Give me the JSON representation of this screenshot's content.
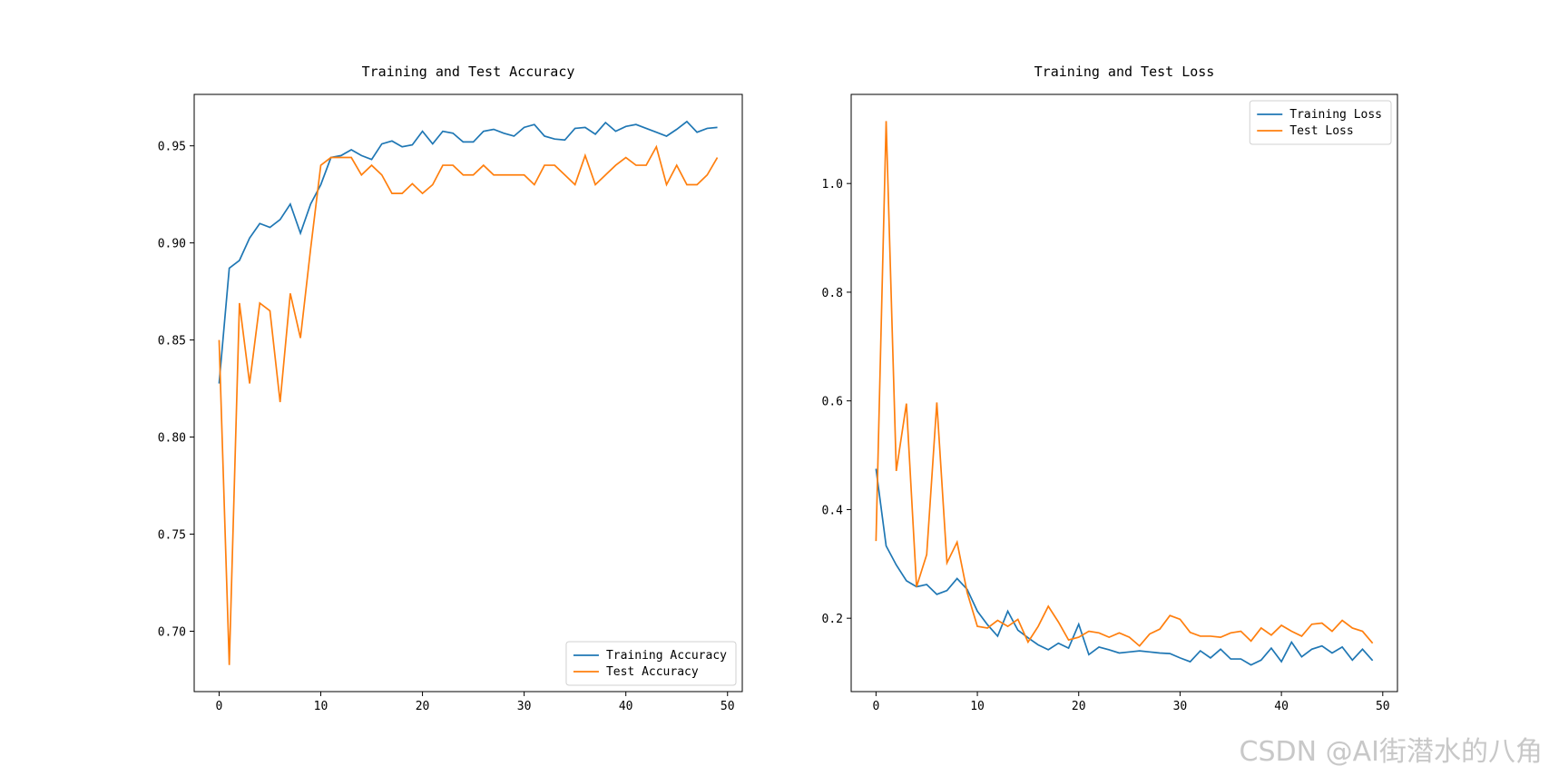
{
  "chart_data": [
    {
      "type": "line",
      "title": "Training and Test Accuracy",
      "x": [
        0,
        1,
        2,
        3,
        4,
        5,
        6,
        7,
        8,
        9,
        10,
        11,
        12,
        13,
        14,
        15,
        16,
        17,
        18,
        19,
        20,
        21,
        22,
        23,
        24,
        25,
        26,
        27,
        28,
        29,
        30,
        31,
        32,
        33,
        34,
        35,
        36,
        37,
        38,
        39,
        40,
        41,
        42,
        43,
        44,
        45,
        46,
        47,
        48,
        49
      ],
      "series": [
        {
          "name": "Training Accuracy",
          "color": "#1f77b4",
          "values": [
            0.8276,
            0.887,
            0.891,
            0.9025,
            0.91,
            0.908,
            0.912,
            0.92,
            0.905,
            0.92,
            0.93,
            0.944,
            0.945,
            0.948,
            0.945,
            0.943,
            0.951,
            0.9525,
            0.9495,
            0.9505,
            0.9575,
            0.951,
            0.9575,
            0.9565,
            0.952,
            0.952,
            0.9575,
            0.9585,
            0.9565,
            0.955,
            0.9595,
            0.961,
            0.955,
            0.9535,
            0.953,
            0.959,
            0.9595,
            0.956,
            0.962,
            0.9575,
            0.96,
            0.961,
            0.959,
            0.957,
            0.955,
            0.9585,
            0.9625,
            0.957,
            0.959,
            0.9595
          ]
        },
        {
          "name": "Test Accuracy",
          "color": "#ff7f0e",
          "values": [
            0.85,
            0.6826,
            0.869,
            0.8276,
            0.869,
            0.865,
            0.818,
            0.874,
            0.851,
            0.897,
            0.94,
            0.944,
            0.944,
            0.944,
            0.935,
            0.94,
            0.935,
            0.9255,
            0.9255,
            0.9305,
            0.9255,
            0.93,
            0.94,
            0.94,
            0.935,
            0.935,
            0.94,
            0.935,
            0.935,
            0.935,
            0.935,
            0.93,
            0.94,
            0.94,
            0.935,
            0.93,
            0.945,
            0.93,
            0.935,
            0.94,
            0.944,
            0.94,
            0.94,
            0.9495,
            0.93,
            0.94,
            0.93,
            0.93,
            0.935,
            0.944
          ]
        }
      ],
      "xlim": [
        -2.45,
        51.45
      ],
      "xticks": [
        0,
        10,
        20,
        30,
        40,
        50
      ],
      "ylim": [
        0.6689,
        0.9765
      ],
      "yticks": [
        {
          "value": 0.7,
          "label": "0.70"
        },
        0.75,
        {
          "value": 0.8,
          "label": "0.80"
        },
        0.85,
        {
          "value": 0.9,
          "label": "0.90"
        },
        0.95
      ],
      "legend": "lower right"
    },
    {
      "type": "line",
      "title": "Training and Test Loss",
      "x": [
        0,
        1,
        2,
        3,
        4,
        5,
        6,
        7,
        8,
        9,
        10,
        11,
        12,
        13,
        14,
        15,
        16,
        17,
        18,
        19,
        20,
        21,
        22,
        23,
        24,
        25,
        26,
        27,
        28,
        29,
        30,
        31,
        32,
        33,
        34,
        35,
        36,
        37,
        38,
        39,
        40,
        41,
        42,
        43,
        44,
        45,
        46,
        47,
        48,
        49
      ],
      "series": [
        {
          "name": "Training Loss",
          "color": "#1f77b4",
          "values": [
            0.475,
            0.333,
            0.298,
            0.269,
            0.258,
            0.262,
            0.244,
            0.251,
            0.273,
            0.253,
            0.213,
            0.188,
            0.167,
            0.213,
            0.178,
            0.164,
            0.151,
            0.142,
            0.154,
            0.145,
            0.189,
            0.133,
            0.147,
            0.142,
            0.136,
            0.138,
            0.14,
            0.138,
            0.136,
            0.135,
            0.127,
            0.12,
            0.14,
            0.127,
            0.143,
            0.125,
            0.125,
            0.114,
            0.123,
            0.145,
            0.12,
            0.156,
            0.129,
            0.143,
            0.149,
            0.136,
            0.147,
            0.123,
            0.143,
            0.122
          ]
        },
        {
          "name": "Test Loss",
          "color": "#ff7f0e",
          "values": [
            0.342,
            1.115,
            0.471,
            0.595,
            0.258,
            0.317,
            0.597,
            0.302,
            0.34,
            0.247,
            0.185,
            0.182,
            0.196,
            0.185,
            0.198,
            0.156,
            0.185,
            0.222,
            0.193,
            0.16,
            0.165,
            0.176,
            0.173,
            0.165,
            0.173,
            0.165,
            0.149,
            0.171,
            0.18,
            0.205,
            0.198,
            0.174,
            0.167,
            0.167,
            0.165,
            0.173,
            0.176,
            0.158,
            0.182,
            0.169,
            0.187,
            0.176,
            0.167,
            0.189,
            0.191,
            0.176,
            0.196,
            0.182,
            0.176,
            0.154
          ]
        }
      ],
      "xlim": [
        -2.45,
        51.45
      ],
      "xticks": [
        0,
        10,
        20,
        30,
        40,
        50
      ],
      "ylim": [
        0.065,
        1.164
      ],
      "yticks": [
        0.2,
        0.4,
        0.6,
        0.8,
        {
          "value": 1.0,
          "label": "1.0"
        }
      ],
      "legend": "upper right"
    }
  ],
  "watermark": "CSDN @AI街潜水的八角"
}
